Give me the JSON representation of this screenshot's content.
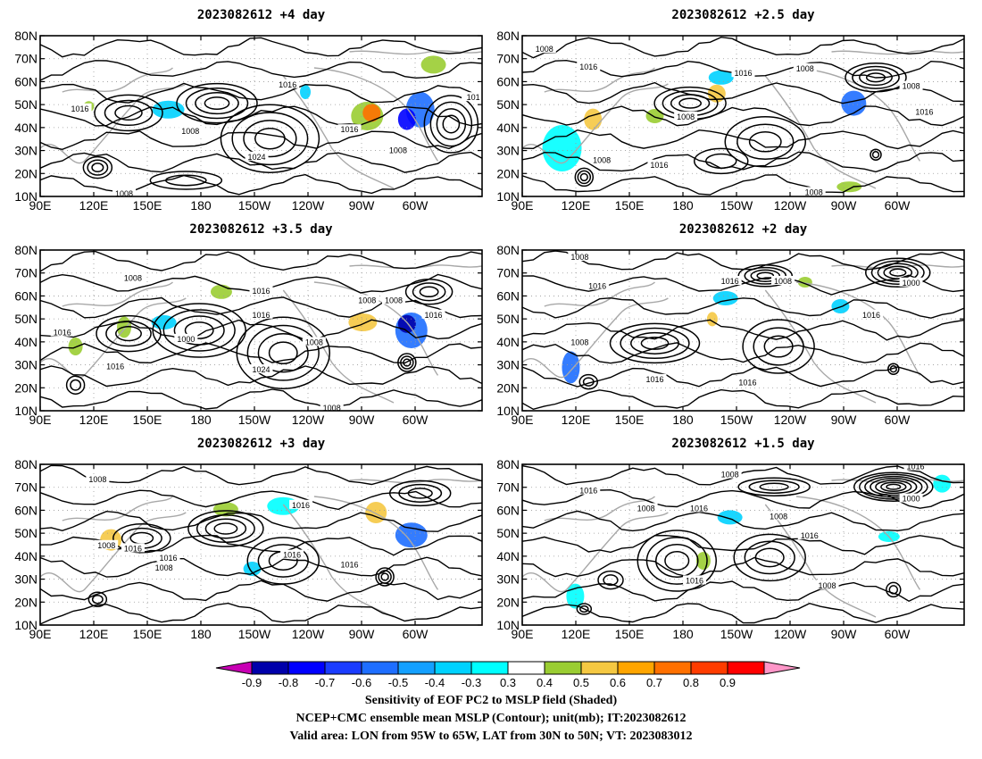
{
  "panels": [
    {
      "title": "2023082612  +4 day",
      "contour_labels": [
        "1016",
        "1008",
        "1024",
        "1016",
        "1016",
        "1008",
        "1008",
        "101"
      ]
    },
    {
      "title": "2023082612  +2.5 day",
      "contour_labels": [
        "1008",
        "1016",
        "1016",
        "1008",
        "1008",
        "1008",
        "1016",
        "1008",
        "1016",
        "1008"
      ]
    },
    {
      "title": "2023082612  +3.5 day",
      "contour_labels": [
        "1008",
        "1016",
        "1000",
        "1016",
        "1024",
        "1008",
        "1008",
        "1016",
        "1008",
        "1016",
        "1016",
        "1008"
      ]
    },
    {
      "title": "2023082612  +2 day",
      "contour_labels": [
        "1008",
        "1016",
        "1016",
        "1008",
        "1008",
        "1000",
        "1016",
        "1016",
        "1016"
      ]
    },
    {
      "title": "2023082612  +3 day",
      "contour_labels": [
        "1008",
        "1008",
        "1016",
        "1008",
        "1016",
        "1016",
        "1016",
        "1016"
      ]
    },
    {
      "title": "2023082612  +1.5 day",
      "contour_labels": [
        "1008",
        "1016",
        "1008",
        "1016",
        "1000",
        "1016",
        "1016",
        "1016",
        "1008",
        "1008"
      ]
    }
  ],
  "axes": {
    "lat_labels": [
      "80N",
      "70N",
      "60N",
      "50N",
      "40N",
      "30N",
      "20N",
      "10N"
    ],
    "lon_labels": [
      "90E",
      "120E",
      "150E",
      "180",
      "150W",
      "120W",
      "90W",
      "60W"
    ]
  },
  "colorbar": {
    "labels": [
      "-0.9",
      "-0.8",
      "-0.7",
      "-0.6",
      "-0.5",
      "-0.4",
      "-0.3",
      "0.3",
      "0.4",
      "0.5",
      "0.6",
      "0.7",
      "0.8",
      "0.9"
    ],
    "colors": [
      "#0000aa",
      "#0000ff",
      "#1a3cff",
      "#1e6eff",
      "#14a0ff",
      "#00d2ff",
      "#00ffff",
      "#ffffff",
      "#9acd32",
      "#f5c842",
      "#ffa500",
      "#ff7000",
      "#ff3c00",
      "#ff0000"
    ],
    "low_end_color": "#c800b4",
    "high_end_color": "#ff96c8"
  },
  "captions": [
    "Sensitivity of EOF PC2 to MSLP field (Shaded)",
    "NCEP+CMC ensemble mean MSLP (Contour); unit(mb); IT:2023082612",
    "Valid area: LON from 95W to 65W, LAT from 30N to 50N; VT: 2023083012"
  ]
}
